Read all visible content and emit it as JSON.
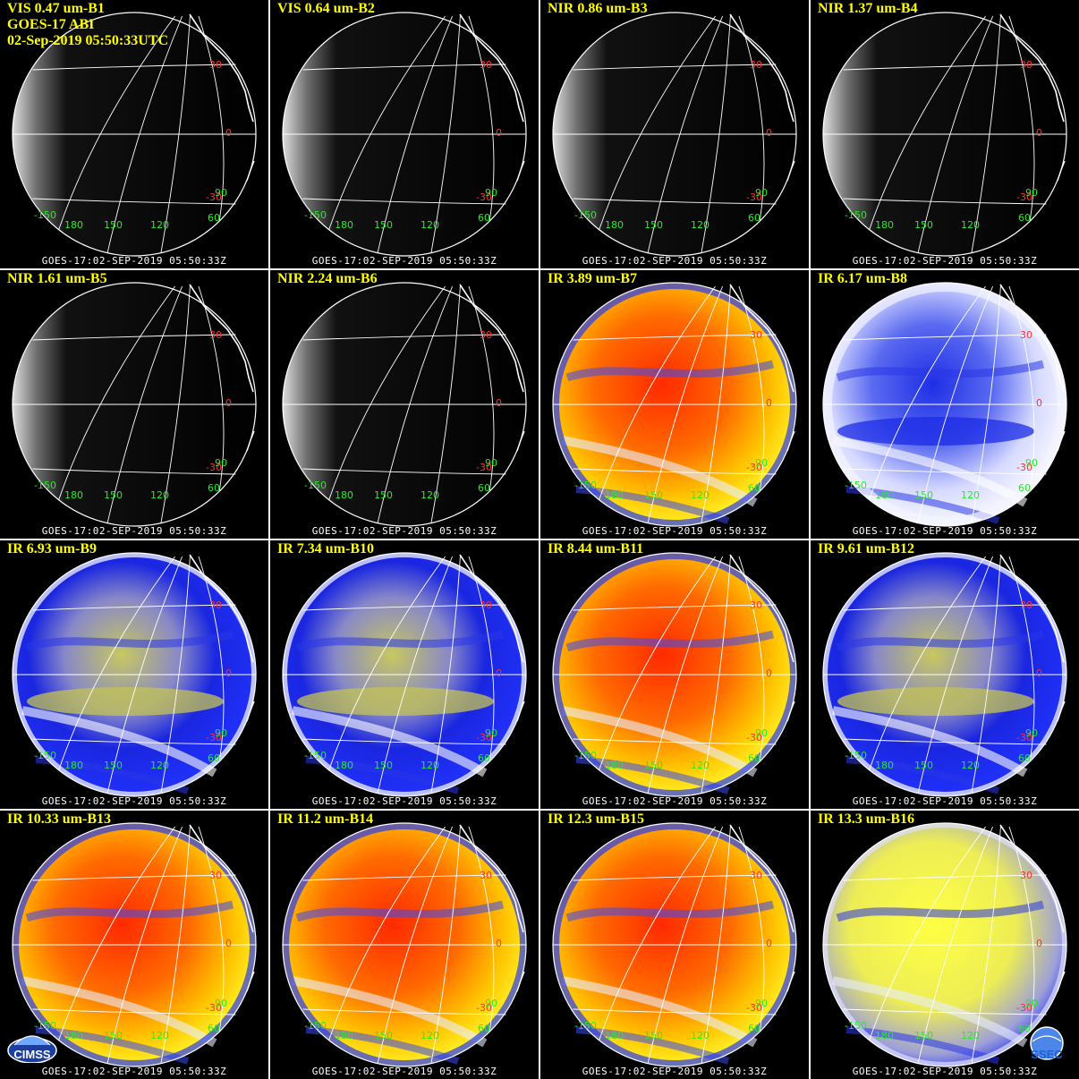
{
  "header": {
    "satellite": "GOES-17 ABI",
    "datetime": "02-Sep-2019 05:50:33UTC"
  },
  "footer_text": "GOES-17:02-SEP-2019 05:50:33Z",
  "latitude_labels": [
    "30",
    "0",
    "-30"
  ],
  "longitude_labels": [
    "-150",
    "180",
    "150",
    "120",
    "60",
    "90"
  ],
  "logos": {
    "left": "CIMSS",
    "right": "SSEC"
  },
  "colors": {
    "label_text": "#ffff00",
    "latitude_text": "#ff3030",
    "longitude_text": "#22ee22",
    "footer_text": "#ffffff",
    "background": "#000000",
    "separator": "#ffffff"
  },
  "panels": [
    {
      "label": "VIS 0.47 um-B1",
      "style": "vis"
    },
    {
      "label": "VIS 0.64 um-B2",
      "style": "vis"
    },
    {
      "label": "NIR 0.86 um-B3",
      "style": "vis"
    },
    {
      "label": "NIR 1.37 um-B4",
      "style": "vis"
    },
    {
      "label": "NIR 1.61 um-B5",
      "style": "vis"
    },
    {
      "label": "NIR 2.24 um-B6",
      "style": "vis"
    },
    {
      "label": "IR 3.89 um-B7",
      "style": "ir-warm"
    },
    {
      "label": "IR 6.17 um-B8",
      "style": "wv-light"
    },
    {
      "label": "IR 6.93 um-B9",
      "style": "wv"
    },
    {
      "label": "IR 7.34 um-B10",
      "style": "wv"
    },
    {
      "label": "IR 8.44 um-B11",
      "style": "ir-warm"
    },
    {
      "label": "IR 9.61 um-B12",
      "style": "wv"
    },
    {
      "label": "IR 10.33 um-B13",
      "style": "ir-warm"
    },
    {
      "label": "IR 11.2 um-B14",
      "style": "ir-warm"
    },
    {
      "label": "IR 12.3 um-B15",
      "style": "ir-warm"
    },
    {
      "label": "IR 13.3 um-B16",
      "style": "ir-yellow"
    }
  ]
}
